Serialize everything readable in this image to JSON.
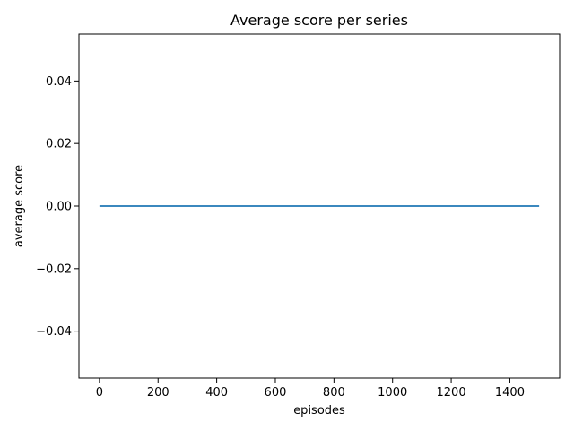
{
  "chart_data": {
    "type": "line",
    "title": "Average score per series",
    "xlabel": "episodes",
    "ylabel": "average score",
    "xlim": [
      -70,
      1570
    ],
    "ylim": [
      -0.055,
      0.055
    ],
    "xticks": [
      0,
      200,
      400,
      600,
      800,
      1000,
      1200,
      1400
    ],
    "xtick_labels": [
      "0",
      "200",
      "400",
      "600",
      "800",
      "1000",
      "1200",
      "1400"
    ],
    "yticks": [
      -0.04,
      -0.02,
      0.0,
      0.02,
      0.04
    ],
    "ytick_labels": [
      "−0.04",
      "−0.02",
      "0.00",
      "0.02",
      "0.04"
    ],
    "grid": false,
    "series": [
      {
        "color": "#1f77b4",
        "x": [
          0,
          1500
        ],
        "y": [
          0.0,
          0.0
        ]
      }
    ]
  }
}
